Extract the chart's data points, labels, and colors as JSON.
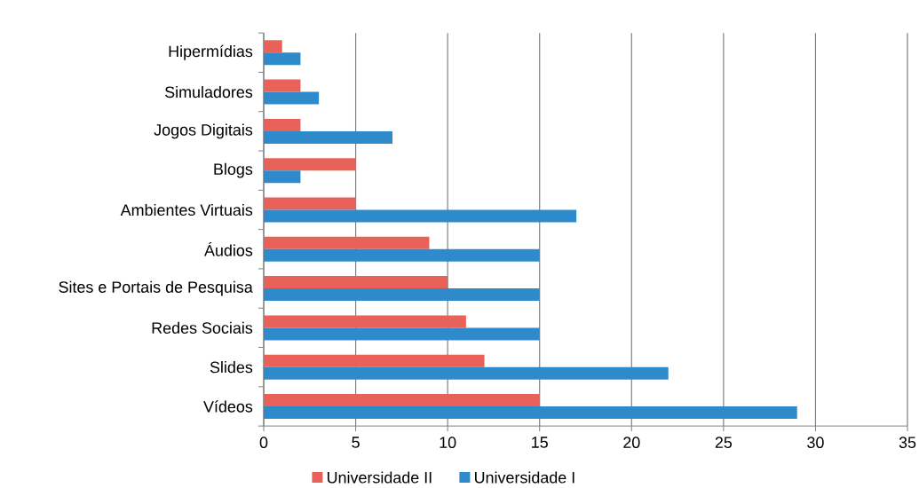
{
  "chart_data": {
    "type": "bar",
    "orientation": "horizontal",
    "categories": [
      "Hipermídias",
      "Simuladores",
      "Jogos Digitais",
      "Blogs",
      "Ambientes Virtuais",
      "Áudios",
      "Sites e Portais de Pesquisa",
      "Redes Sociais",
      "Slides",
      "Vídeos"
    ],
    "series": [
      {
        "name": "Universidade II",
        "color": "#e8625a",
        "values": [
          1,
          2,
          2,
          5,
          5,
          9,
          10,
          11,
          12,
          15
        ]
      },
      {
        "name": "Universidade I",
        "color": "#2e8acb",
        "values": [
          2,
          3,
          7,
          2,
          17,
          15,
          15,
          15,
          22,
          29
        ]
      }
    ],
    "xlim": [
      0,
      35
    ],
    "xticks": [
      0,
      5,
      10,
      15,
      20,
      25,
      30,
      35
    ],
    "grid": "x",
    "legend": "bottom"
  }
}
